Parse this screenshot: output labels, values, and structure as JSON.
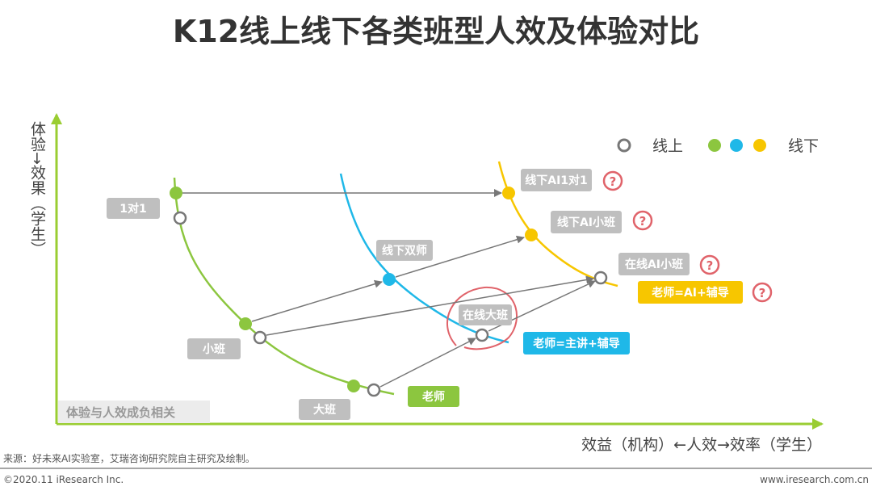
{
  "title": "K12线上线下各类班型人效及体验对比",
  "y_axis_label": "体验→效果（学生）",
  "x_axis_label": "效益（机构）←人效→效率（学生）",
  "legend": {
    "online": "线上",
    "offline": "线下"
  },
  "note": "体验与人效成负相关",
  "labels": {
    "one_on_one": "1对1",
    "small_class": "小班",
    "large_class": "大班",
    "teacher_green": "老师",
    "offline_dual_teacher": "线下双师",
    "online_large_class": "在线大班",
    "teacher_blue": "老师=主讲+辅导",
    "offline_ai_1on1": "线下AI1对1",
    "offline_ai_small": "线下AI小班",
    "online_ai_small": "在线AI小班",
    "teacher_yellow": "老师=AI+辅导"
  },
  "question_mark": "?",
  "colors": {
    "green": "#8cc63f",
    "blue": "#1fb8e8",
    "yellow": "#f7c600",
    "red": "#e0636a",
    "gray": "#bfbfbf"
  },
  "footer": {
    "source": "来源：好未来AI实验室，艾瑞咨询研究院自主研究及绘制。",
    "copyright": "©2020.11 iResearch Inc.",
    "website": "www.iresearch.com.cn"
  }
}
